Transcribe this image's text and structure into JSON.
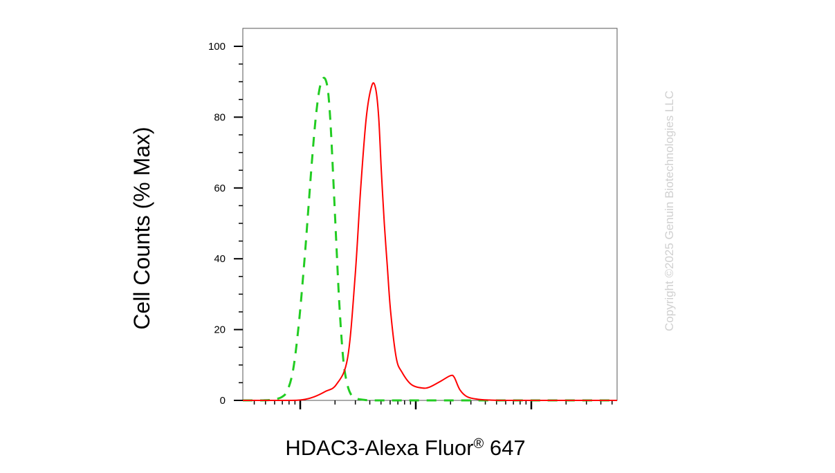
{
  "chart_data": {
    "type": "line",
    "title": "",
    "ylabel": "Cell Counts (% Max)",
    "xlabel": "HDAC3-Alexa Fluor",
    "xlabel_superscript": "®",
    "xlabel_suffix": " 647",
    "x_scale": "log",
    "x_tick_labels_shown": false,
    "ylim": [
      0,
      100
    ],
    "yticks": [
      0,
      20,
      40,
      60,
      80,
      100
    ],
    "grid": false,
    "legend": "none",
    "series": [
      {
        "color": "#22cc22",
        "style": "dashed",
        "x": [
          0.0,
          0.05,
          0.08,
          0.105,
          0.12,
          0.135,
          0.15,
          0.165,
          0.175,
          0.185,
          0.195,
          0.205,
          0.215,
          0.223,
          0.229,
          0.235,
          0.242,
          0.25,
          0.258,
          0.268,
          0.278,
          0.29,
          0.305,
          0.32,
          0.34,
          0.38,
          0.45,
          0.6,
          0.8,
          1.0
        ],
        "y": [
          0,
          0,
          0.2,
          1,
          3,
          9,
          22,
          40,
          54,
          68,
          80,
          88,
          91,
          90,
          86,
          77,
          62,
          44,
          27,
          12,
          5,
          1.5,
          0.5,
          0.2,
          0,
          0,
          0,
          0,
          0,
          0
        ]
      },
      {
        "color": "#ff0000",
        "style": "solid",
        "x": [
          0.0,
          0.12,
          0.16,
          0.19,
          0.22,
          0.25,
          0.28,
          0.3,
          0.315,
          0.33,
          0.345,
          0.355,
          0.363,
          0.37,
          0.378,
          0.386,
          0.395,
          0.41,
          0.425,
          0.45,
          0.48,
          0.5,
          0.53,
          0.555,
          0.565,
          0.58,
          0.6,
          0.63,
          0.66,
          0.7,
          0.8,
          1.0
        ],
        "y": [
          0,
          0,
          0.2,
          1,
          2.5,
          4.5,
          12,
          35,
          60,
          80,
          89,
          88,
          80,
          65,
          50,
          38,
          25,
          12,
          8,
          4.5,
          3.5,
          3.8,
          5.5,
          7,
          6.5,
          3,
          1,
          0.3,
          0.1,
          0,
          0,
          0
        ]
      }
    ]
  },
  "copyright": "Copyright ©2025 Genuin Biotechnologies LLC"
}
